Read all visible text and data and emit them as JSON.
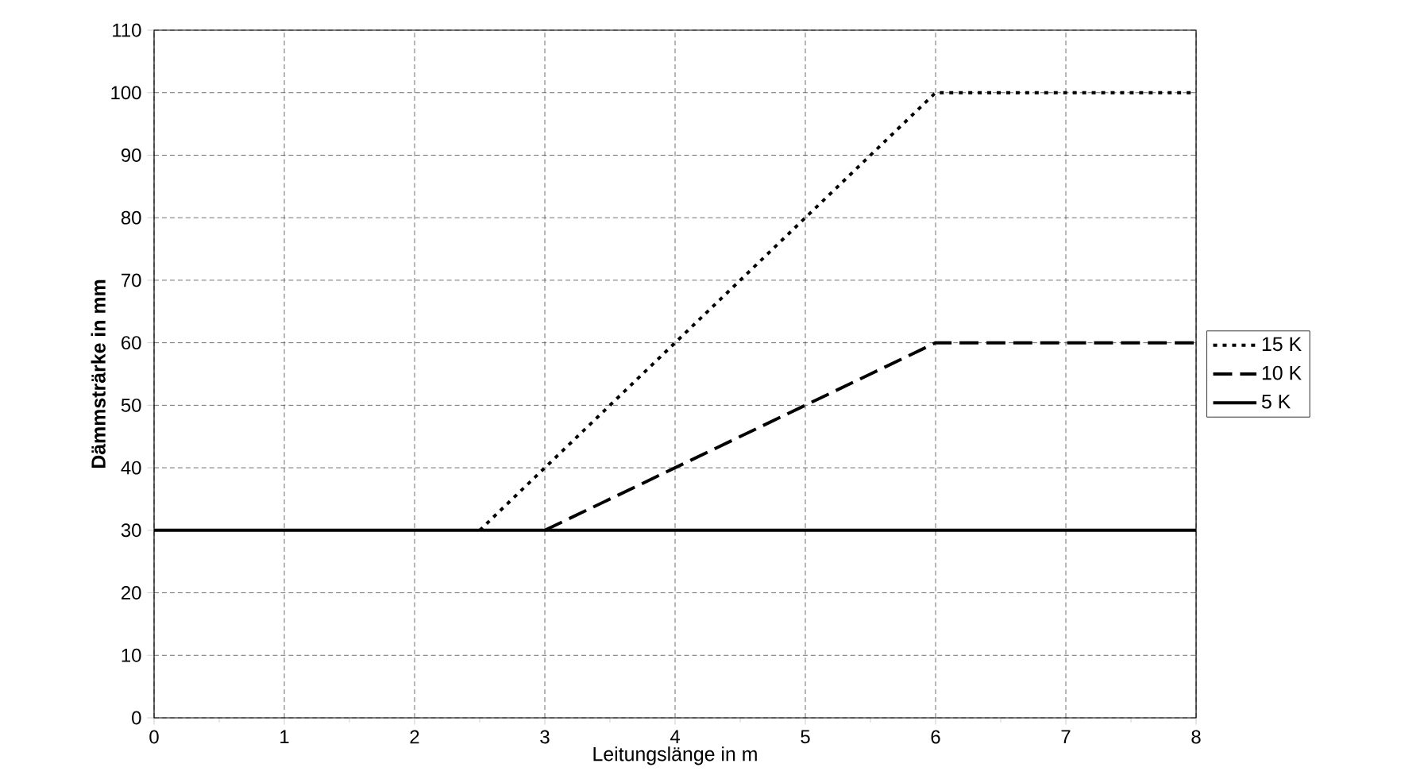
{
  "chart_data": {
    "type": "line",
    "xlabel": "Leitungslänge in m",
    "ylabel": "Dämmsträrke in mm",
    "xlim": [
      0,
      8
    ],
    "ylim": [
      0,
      110
    ],
    "xticks": [
      0,
      1,
      2,
      3,
      4,
      5,
      6,
      7,
      8
    ],
    "yticks": [
      0,
      10,
      20,
      30,
      40,
      50,
      60,
      70,
      80,
      90,
      100,
      110
    ],
    "grid": true,
    "legend": "right",
    "marker": "none",
    "series": [
      {
        "name": "15 K",
        "color": "#000000",
        "line_style": "dotted",
        "x": [
          2.5,
          3,
          4,
          5,
          6,
          8
        ],
        "values": [
          30,
          40,
          60,
          80,
          100,
          100
        ]
      },
      {
        "name": "10 K",
        "color": "#000000",
        "line_style": "dashed",
        "x": [
          3,
          4,
          5,
          5.5,
          6,
          8
        ],
        "values": [
          30,
          40,
          50,
          55,
          60,
          60
        ]
      },
      {
        "name": "5 K",
        "color": "#000000",
        "line_style": "solid",
        "x": [
          0,
          8
        ],
        "values": [
          30,
          30
        ]
      }
    ]
  }
}
